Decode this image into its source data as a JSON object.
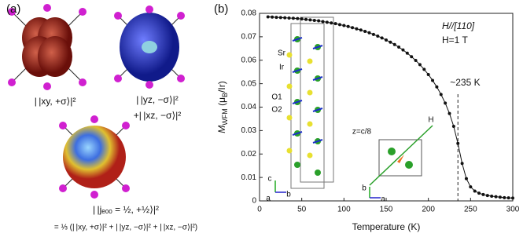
{
  "panel_a": {
    "label": "(a)",
    "captions": [
      "| |xy, +σ⟩|²",
      "| |yz, −σ⟩|²",
      "+| |xz, −σ⟩|²",
      "| |jₑₒₒ = ½, +½⟩|²",
      "= ⅓ (| |xy, +σ⟩|² + | |yz, −σ⟩|² + | |xz, −σ⟩|²)"
    ]
  },
  "chart_data": {
    "type": "line",
    "panel_label": "(b)",
    "x_label": "Temperature (K)",
    "y_label_parts": [
      "M",
      "WFM",
      " (μ",
      "B",
      "/Ir)"
    ],
    "annotations": [
      "H//[110]",
      "H=1 T"
    ],
    "inset_labels": [
      "Sr",
      "Ir",
      "O1",
      "O2",
      "z=c/8",
      "H",
      "c",
      "a",
      "b",
      "b",
      "a"
    ],
    "vline": {
      "x": 235,
      "label": "~235 K"
    },
    "color": "#111111",
    "x": [
      10,
      15,
      20,
      25,
      30,
      35,
      40,
      45,
      50,
      55,
      60,
      65,
      70,
      75,
      80,
      85,
      90,
      95,
      100,
      105,
      110,
      115,
      120,
      125,
      130,
      135,
      140,
      145,
      150,
      155,
      160,
      165,
      170,
      175,
      180,
      185,
      190,
      195,
      200,
      205,
      210,
      215,
      220,
      225,
      230,
      235,
      240,
      245,
      250,
      255,
      260,
      265,
      270,
      275,
      280,
      285,
      290,
      295,
      300
    ],
    "values": [
      0.0785,
      0.0784,
      0.0783,
      0.0782,
      0.0781,
      0.078,
      0.0779,
      0.0778,
      0.0776,
      0.0774,
      0.0772,
      0.077,
      0.0768,
      0.0765,
      0.0762,
      0.0759,
      0.0756,
      0.0752,
      0.0748,
      0.0744,
      0.0739,
      0.0734,
      0.0729,
      0.0723,
      0.0717,
      0.071,
      0.0703,
      0.0695,
      0.0686,
      0.0677,
      0.0667,
      0.0656,
      0.0644,
      0.063,
      0.0615,
      0.0599,
      0.0581,
      0.0561,
      0.0539,
      0.0514,
      0.0486,
      0.0454,
      0.0417,
      0.0373,
      0.0318,
      0.0245,
      0.016,
      0.0095,
      0.006,
      0.0042,
      0.0033,
      0.0027,
      0.0023,
      0.002,
      0.0018,
      0.0016,
      0.0014,
      0.0013,
      0.0012
    ],
    "xlim": [
      0,
      300
    ],
    "xticks": [
      0,
      50,
      100,
      150,
      200,
      250,
      300
    ],
    "ylim": [
      0,
      0.08
    ],
    "yticks": [
      0,
      0.01,
      0.02,
      0.03,
      0.04,
      0.05,
      0.06,
      0.07,
      0.08
    ]
  }
}
